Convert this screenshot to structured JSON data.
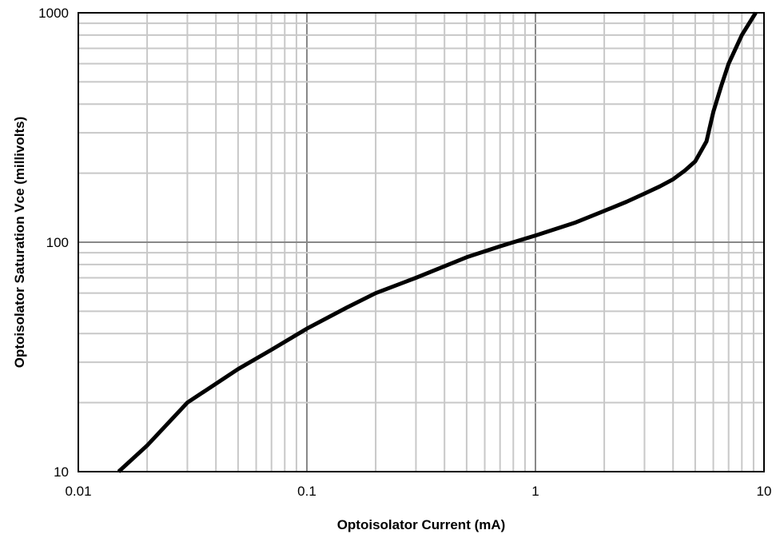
{
  "chart_data": {
    "type": "line",
    "title": "",
    "xlabel": "Optoisolator Current (mA)",
    "ylabel": "Optoisolator Saturation Vce (millivolts)",
    "x_scale": "log",
    "y_scale": "log",
    "xlim": [
      0.01,
      10
    ],
    "ylim": [
      10,
      1000
    ],
    "x_ticks": [
      {
        "value": 0.01,
        "label": "0.01"
      },
      {
        "value": 0.1,
        "label": "0.1"
      },
      {
        "value": 1,
        "label": "1"
      },
      {
        "value": 10,
        "label": "10"
      }
    ],
    "y_ticks": [
      {
        "value": 10,
        "label": "10"
      },
      {
        "value": 100,
        "label": "100"
      },
      {
        "value": 1000,
        "label": "1000"
      }
    ],
    "grid": true,
    "legend": "none",
    "colors": {
      "line": "#000000",
      "major_grid": "#888888",
      "minor_grid": "#c8c8c8",
      "frame": "#000000"
    },
    "series": [
      {
        "x": [
          0.015,
          0.02,
          0.03,
          0.05,
          0.07,
          0.1,
          0.15,
          0.2,
          0.3,
          0.5,
          0.7,
          1,
          1.5,
          2,
          2.5,
          3,
          3.5,
          4,
          4.5,
          5,
          5.6,
          6,
          6.5,
          7,
          8,
          9.2
        ],
        "y": [
          10,
          13,
          20,
          28,
          34,
          42,
          52,
          60,
          70,
          86,
          96,
          107,
          122,
          137,
          150,
          163,
          175,
          188,
          205,
          225,
          275,
          370,
          480,
          600,
          800,
          1000
        ]
      }
    ]
  }
}
